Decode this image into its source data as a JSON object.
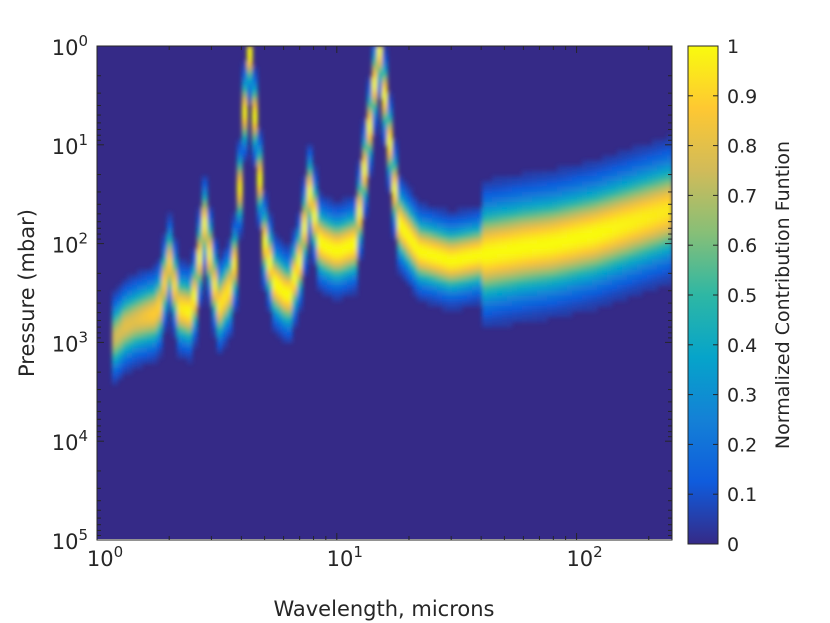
{
  "chart_data": {
    "type": "heatmap",
    "xlabel": "Wavelength, microns",
    "ylabel": "Pressure (mbar)",
    "x_scale": "log",
    "y_scale": "log",
    "y_reversed": true,
    "xlim": [
      1,
      250
    ],
    "ylim": [
      1,
      100000
    ],
    "x_ticks": [
      {
        "value": 1,
        "base": "10",
        "exp": "0"
      },
      {
        "value": 10,
        "base": "10",
        "exp": "1"
      },
      {
        "value": 100,
        "base": "10",
        "exp": "2"
      }
    ],
    "y_ticks": [
      {
        "value": 1,
        "base": "10",
        "exp": "0"
      },
      {
        "value": 10,
        "base": "10",
        "exp": "1"
      },
      {
        "value": 100,
        "base": "10",
        "exp": "2"
      },
      {
        "value": 1000,
        "base": "10",
        "exp": "3"
      },
      {
        "value": 10000,
        "base": "10",
        "exp": "4"
      },
      {
        "value": 100000,
        "base": "10",
        "exp": "5"
      }
    ],
    "colorbar": {
      "label": "Normalized Contribution Funtion",
      "range": [
        0,
        1
      ],
      "ticks": [
        "0",
        "0.1",
        "0.2",
        "0.3",
        "0.4",
        "0.5",
        "0.6",
        "0.7",
        "0.8",
        "0.9",
        "1"
      ],
      "colormap": "parula",
      "stops": [
        "#352a87",
        "#0f5cdd",
        "#1481d6",
        "#06a4ca",
        "#2eb7a4",
        "#87bf77",
        "#d1bb59",
        "#fec832",
        "#f9fb0e"
      ]
    },
    "grid": false,
    "ridge": [
      {
        "x": 1.2,
        "p": 900,
        "peak": 0.75
      },
      {
        "x": 1.3,
        "p": 700,
        "peak": 0.8
      },
      {
        "x": 1.45,
        "p": 600,
        "peak": 0.8
      },
      {
        "x": 1.6,
        "p": 550,
        "peak": 0.85
      },
      {
        "x": 1.8,
        "p": 500,
        "peak": 0.9
      },
      {
        "x": 2.0,
        "p": 150,
        "peak": 0.9
      },
      {
        "x": 2.2,
        "p": 450,
        "peak": 0.95
      },
      {
        "x": 2.5,
        "p": 500,
        "peak": 1.0
      },
      {
        "x": 2.8,
        "p": 60,
        "peak": 1.0
      },
      {
        "x": 3.2,
        "p": 450,
        "peak": 0.95
      },
      {
        "x": 3.7,
        "p": 250,
        "peak": 0.95
      },
      {
        "x": 4.3,
        "p": 1,
        "peak": 1.0
      },
      {
        "x": 5.0,
        "p": 100,
        "peak": 1.0
      },
      {
        "x": 5.5,
        "p": 250,
        "peak": 1.0
      },
      {
        "x": 6.3,
        "p": 350,
        "peak": 1.0
      },
      {
        "x": 7.0,
        "p": 150,
        "peak": 1.0
      },
      {
        "x": 7.7,
        "p": 30,
        "peak": 1.0
      },
      {
        "x": 8.5,
        "p": 100,
        "peak": 1.0
      },
      {
        "x": 10,
        "p": 120,
        "peak": 1.0
      },
      {
        "x": 12,
        "p": 100,
        "peak": 1.0
      },
      {
        "x": 15,
        "p": 1,
        "peak": 1.0
      },
      {
        "x": 18,
        "p": 60,
        "peak": 1.0
      },
      {
        "x": 22,
        "p": 120,
        "peak": 1.0
      },
      {
        "x": 30,
        "p": 150,
        "peak": 1.0
      },
      {
        "x": 40,
        "p": 130,
        "peak": 1.0
      },
      {
        "x": 60,
        "p": 110,
        "peak": 1.0
      },
      {
        "x": 80,
        "p": 100,
        "peak": 1.0
      },
      {
        "x": 120,
        "p": 80,
        "peak": 1.0
      },
      {
        "x": 250,
        "p": 45,
        "peak": 0.95
      }
    ]
  }
}
